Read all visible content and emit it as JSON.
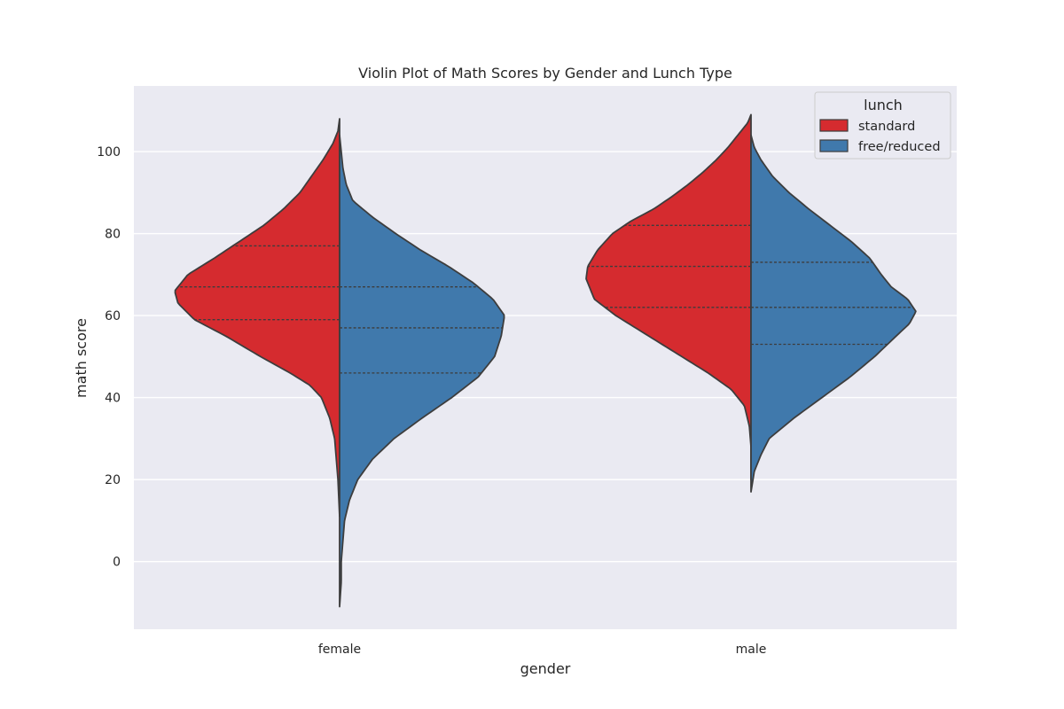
{
  "chart_data": {
    "type": "violin",
    "title": "Violin Plot of Math Scores by Gender and Lunch Type",
    "xlabel": "gender",
    "ylabel": "math score",
    "categories": [
      "female",
      "male"
    ],
    "ylim": [
      -16.5,
      116
    ],
    "yticks": [
      0,
      20,
      40,
      60,
      80,
      100
    ],
    "grid": true,
    "split": true,
    "inner": "quartile",
    "background_color": "#eaeaf2",
    "legend": {
      "title": "lunch",
      "position": "top-right"
    },
    "series": [
      {
        "name": "standard",
        "side": "left",
        "color": "#d52b2f",
        "violins": [
          {
            "category": "female",
            "range": [
              11,
              108
            ],
            "quartiles": [
              59,
              67,
              77
            ],
            "density": [
              [
                11,
                0.0
              ],
              [
                20,
                0.01
              ],
              [
                30,
                0.03
              ],
              [
                35,
                0.06
              ],
              [
                40,
                0.11
              ],
              [
                43,
                0.18
              ],
              [
                46,
                0.3
              ],
              [
                50,
                0.48
              ],
              [
                55,
                0.69
              ],
              [
                59,
                0.88
              ],
              [
                63,
                0.98
              ],
              [
                66,
                1.0
              ],
              [
                70,
                0.92
              ],
              [
                74,
                0.76
              ],
              [
                78,
                0.61
              ],
              [
                82,
                0.46
              ],
              [
                86,
                0.34
              ],
              [
                90,
                0.24
              ],
              [
                94,
                0.17
              ],
              [
                98,
                0.1
              ],
              [
                102,
                0.04
              ],
              [
                105,
                0.01
              ],
              [
                108,
                0.0
              ]
            ]
          },
          {
            "category": "male",
            "range": [
              20,
              109
            ],
            "quartiles": [
              62,
              72,
              82
            ],
            "density": [
              [
                20,
                0.0
              ],
              [
                28,
                0.0
              ],
              [
                33,
                0.01
              ],
              [
                38,
                0.04
              ],
              [
                42,
                0.12
              ],
              [
                46,
                0.26
              ],
              [
                50,
                0.42
              ],
              [
                55,
                0.62
              ],
              [
                60,
                0.82
              ],
              [
                64,
                0.95
              ],
              [
                69,
                1.0
              ],
              [
                72,
                0.99
              ],
              [
                76,
                0.93
              ],
              [
                80,
                0.84
              ],
              [
                83,
                0.73
              ],
              [
                86,
                0.59
              ],
              [
                89,
                0.48
              ],
              [
                92,
                0.38
              ],
              [
                95,
                0.29
              ],
              [
                98,
                0.21
              ],
              [
                101,
                0.14
              ],
              [
                104,
                0.08
              ],
              [
                107,
                0.02
              ],
              [
                109,
                0.0
              ]
            ]
          }
        ]
      },
      {
        "name": "free/reduced",
        "side": "right",
        "color": "#4079ac",
        "violins": [
          {
            "category": "female",
            "range": [
              -11,
              104
            ],
            "quartiles": [
              46,
              57,
              67
            ],
            "density": [
              [
                -11,
                0.0
              ],
              [
                -5,
                0.01
              ],
              [
                0,
                0.01
              ],
              [
                5,
                0.02
              ],
              [
                10,
                0.03
              ],
              [
                15,
                0.06
              ],
              [
                20,
                0.11
              ],
              [
                25,
                0.2
              ],
              [
                30,
                0.33
              ],
              [
                35,
                0.5
              ],
              [
                40,
                0.68
              ],
              [
                45,
                0.84
              ],
              [
                50,
                0.94
              ],
              [
                55,
                0.98
              ],
              [
                60,
                1.0
              ],
              [
                64,
                0.93
              ],
              [
                68,
                0.81
              ],
              [
                72,
                0.66
              ],
              [
                76,
                0.49
              ],
              [
                80,
                0.34
              ],
              [
                84,
                0.2
              ],
              [
                88,
                0.08
              ],
              [
                92,
                0.04
              ],
              [
                96,
                0.02
              ],
              [
                100,
                0.01
              ],
              [
                104,
                0.0
              ]
            ]
          },
          {
            "category": "male",
            "range": [
              17,
              104
            ],
            "quartiles": [
              53,
              62,
              73
            ],
            "density": [
              [
                17,
                0.0
              ],
              [
                22,
                0.02
              ],
              [
                26,
                0.06
              ],
              [
                30,
                0.11
              ],
              [
                35,
                0.26
              ],
              [
                40,
                0.43
              ],
              [
                45,
                0.6
              ],
              [
                50,
                0.75
              ],
              [
                55,
                0.88
              ],
              [
                58,
                0.96
              ],
              [
                61,
                1.0
              ],
              [
                64,
                0.95
              ],
              [
                67,
                0.85
              ],
              [
                70,
                0.79
              ],
              [
                74,
                0.72
              ],
              [
                78,
                0.61
              ],
              [
                82,
                0.48
              ],
              [
                86,
                0.35
              ],
              [
                90,
                0.23
              ],
              [
                94,
                0.13
              ],
              [
                98,
                0.06
              ],
              [
                101,
                0.02
              ],
              [
                104,
                0.0
              ]
            ]
          }
        ]
      }
    ]
  }
}
